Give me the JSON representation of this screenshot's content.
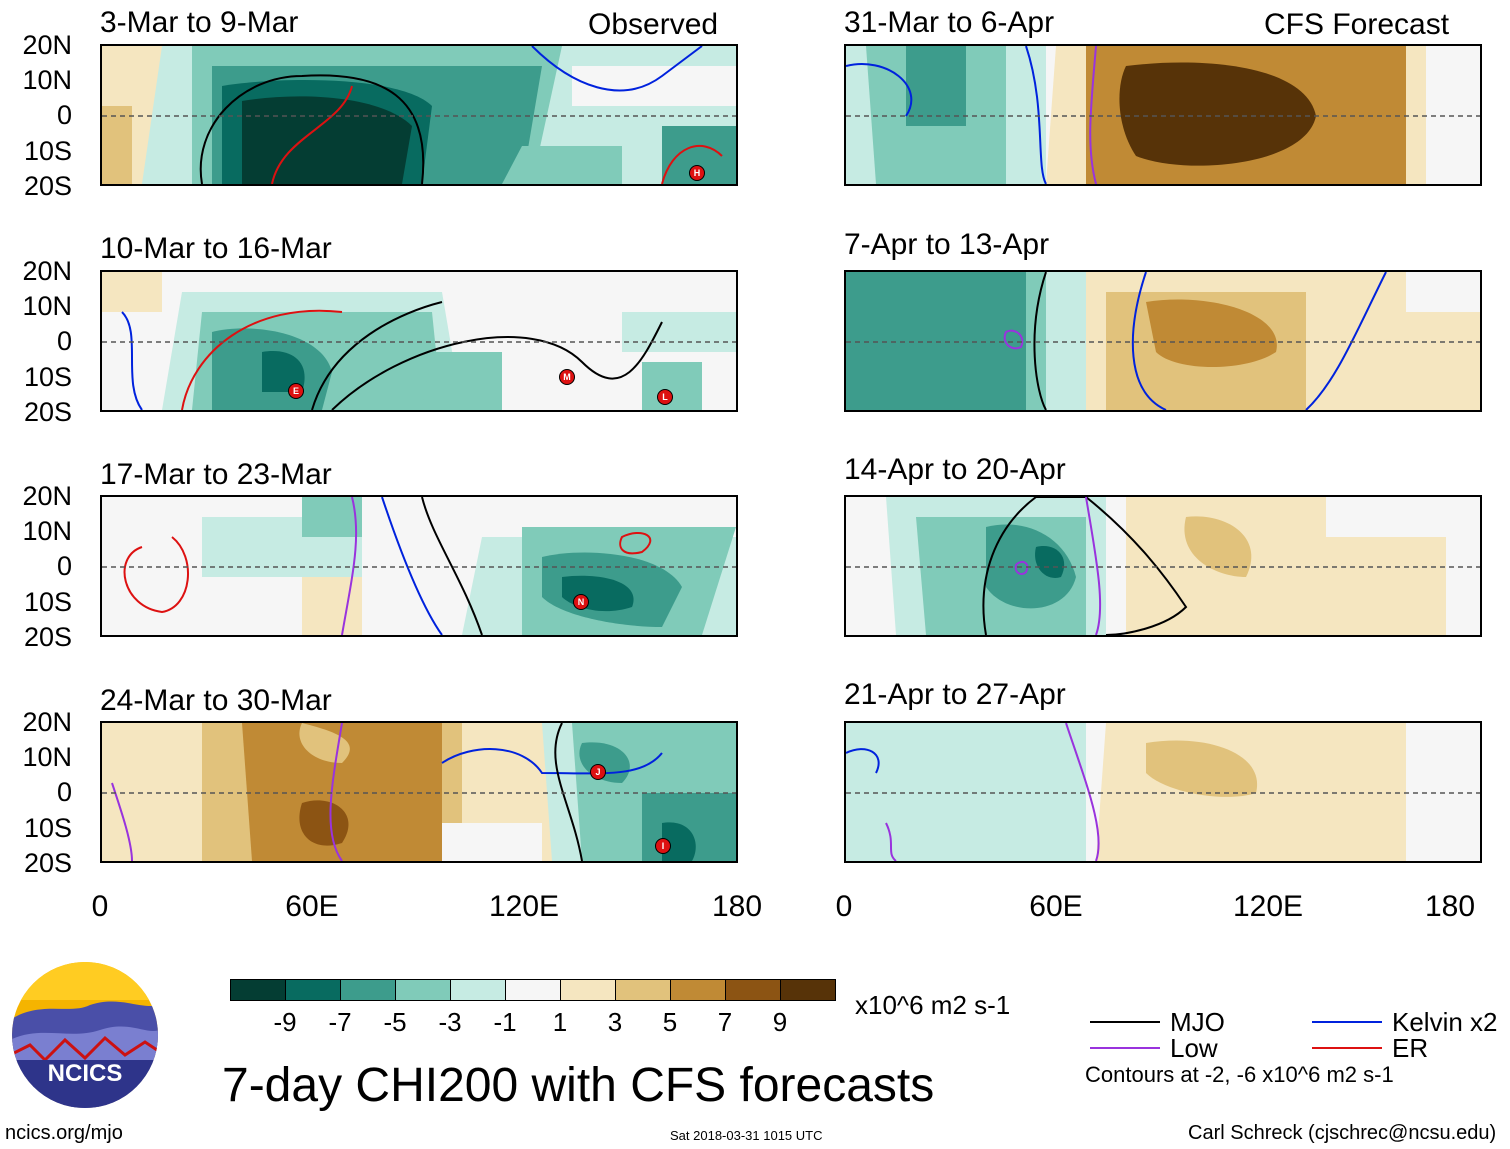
{
  "observed_label": "Observed",
  "forecast_label": "CFS Forecast",
  "lat_labels": [
    "20N",
    "10N",
    "0",
    "10S",
    "20S"
  ],
  "lon_labels": [
    "0",
    "60E",
    "120E",
    "180"
  ],
  "left_panels": [
    {
      "title": "3-Mar to 9-Mar",
      "storms": [
        "H"
      ]
    },
    {
      "title": "10-Mar to 16-Mar",
      "storms": [
        "E",
        "M",
        "L"
      ]
    },
    {
      "title": "17-Mar to 23-Mar",
      "storms": [
        "N"
      ]
    },
    {
      "title": "24-Mar to 30-Mar",
      "storms": [
        "J",
        "I"
      ]
    }
  ],
  "right_panels": [
    {
      "title": "31-Mar to 6-Apr"
    },
    {
      "title": "7-Apr to 13-Apr"
    },
    {
      "title": "14-Apr to 20-Apr"
    },
    {
      "title": "21-Apr to 27-Apr"
    }
  ],
  "colorbar": {
    "colors": [
      "#043d33",
      "#086b60",
      "#3d9c8c",
      "#80cbb9",
      "#c6ebe3",
      "#f6f6f6",
      "#f5e6c0",
      "#e1c27c",
      "#c08a35",
      "#8c5413",
      "#573308"
    ],
    "labels": [
      "-9",
      "-7",
      "-5",
      "-3",
      "-1",
      "1",
      "3",
      "5",
      "7",
      "9"
    ],
    "units": "x10^6 m2 s-1"
  },
  "legend": {
    "items": [
      {
        "label": "MJO",
        "color": "#000000"
      },
      {
        "label": "Kelvin x2",
        "color": "#0022dd"
      },
      {
        "label": "Low",
        "color": "#9933dd"
      },
      {
        "label": "ER",
        "color": "#dd1111"
      }
    ],
    "contours_note": "Contours at -2, -6 x10^6 m2 s-1"
  },
  "main_title": "7-day CHI200 with CFS forecasts",
  "logo_text": "NCICS",
  "url": "ncics.org/mjo",
  "timestamp": "Sat 2018-03-31 1015 UTC",
  "credit": "Carl Schreck (cjschrec@ncsu.edu)"
}
